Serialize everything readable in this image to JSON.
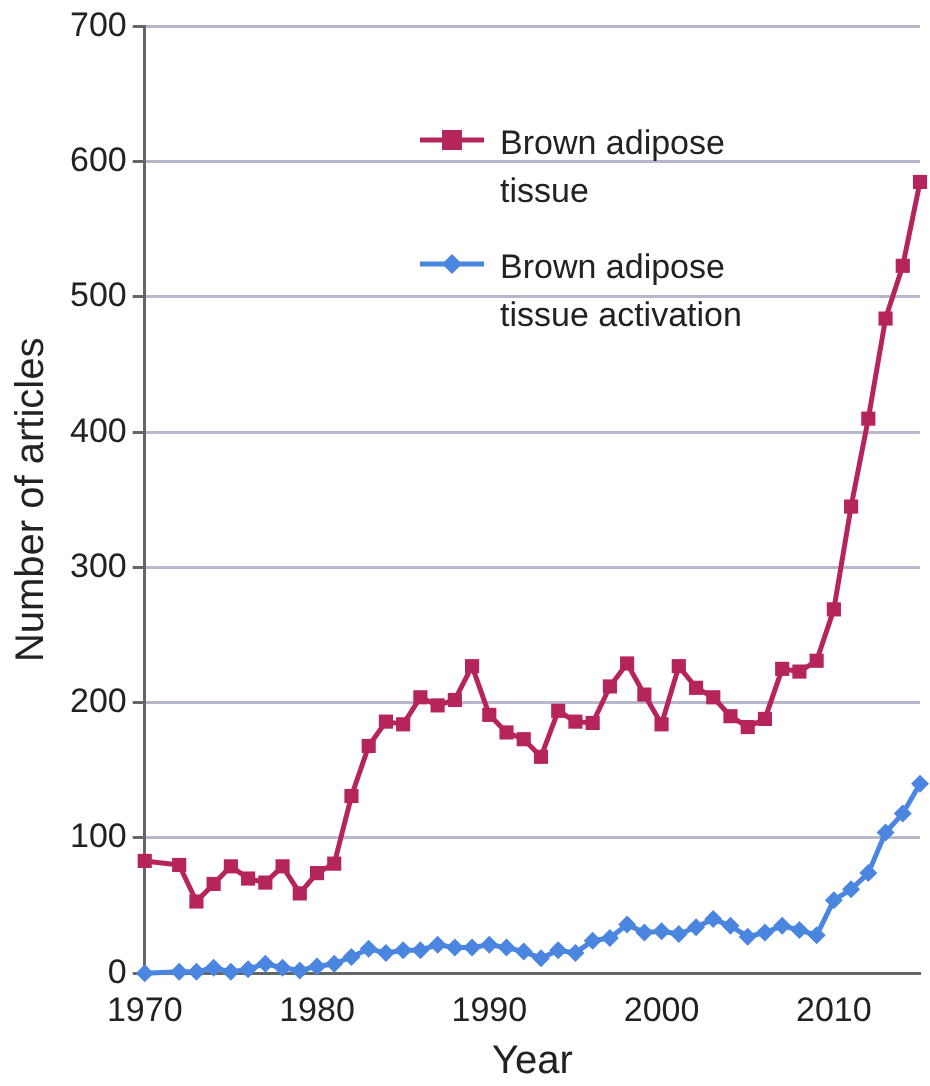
{
  "chart_data": {
    "type": "line",
    "xlabel": "Year",
    "ylabel": "Number of articles",
    "x": [
      1970,
      1972,
      1973,
      1974,
      1975,
      1976,
      1977,
      1978,
      1979,
      1980,
      1981,
      1982,
      1983,
      1984,
      1985,
      1986,
      1987,
      1988,
      1989,
      1990,
      1991,
      1992,
      1993,
      1994,
      1995,
      1996,
      1997,
      1998,
      1999,
      2000,
      2001,
      2002,
      2003,
      2004,
      2005,
      2006,
      2007,
      2008,
      2009,
      2010,
      2011,
      2012,
      2013,
      2014,
      2015
    ],
    "series": [
      {
        "name": "Brown adipose tissue",
        "color": "#b5245a",
        "marker": "square",
        "values": [
          83,
          80,
          53,
          66,
          79,
          70,
          67,
          79,
          59,
          74,
          81,
          131,
          168,
          186,
          184,
          204,
          198,
          202,
          227,
          191,
          178,
          173,
          160,
          194,
          186,
          185,
          212,
          229,
          206,
          184,
          227,
          211,
          204,
          190,
          182,
          188,
          225,
          223,
          231,
          269,
          345,
          410,
          484,
          523,
          585
        ]
      },
      {
        "name": "Brown adipose tissue activation",
        "color": "#4a86e0",
        "marker": "diamond",
        "values": [
          0,
          1,
          1,
          4,
          1,
          3,
          7,
          4,
          2,
          5,
          7,
          12,
          18,
          15,
          17,
          17,
          21,
          19,
          19,
          21,
          19,
          16,
          11,
          17,
          15,
          24,
          26,
          36,
          30,
          31,
          29,
          34,
          40,
          35,
          27,
          30,
          35,
          32,
          28,
          54,
          62,
          74,
          104,
          118,
          140
        ]
      }
    ],
    "xlim": [
      1970,
      2015
    ],
    "xticks": [
      1970,
      1980,
      1990,
      2000,
      2010
    ],
    "ylim": [
      0,
      700
    ],
    "yticks": [
      0,
      100,
      200,
      300,
      400,
      500,
      600,
      700
    ],
    "grid": "y",
    "legend": "top",
    "line_style": "solid"
  }
}
